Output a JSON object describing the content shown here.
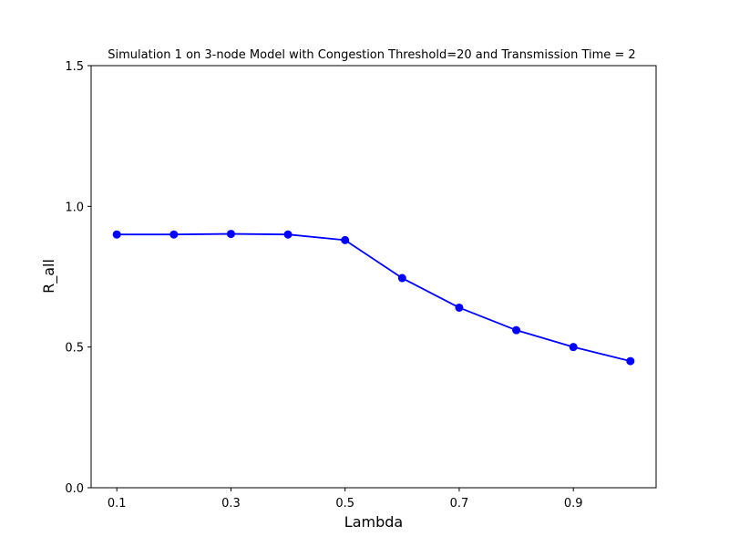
{
  "chart_data": {
    "type": "line",
    "title": "Simulation 1 on 3-node Model with Congestion Threshold=20 and Transmission Time = 2",
    "xlabel": "Lambda",
    "ylabel": "R_all",
    "x": [
      0.1,
      0.2,
      0.3,
      0.4,
      0.5,
      0.6,
      0.7,
      0.8,
      0.9,
      1.0
    ],
    "series": [
      {
        "values": [
          0.9,
          0.9,
          0.902,
          0.9,
          0.88,
          0.745,
          0.64,
          0.56,
          0.5,
          0.45
        ],
        "color": "#0000ff",
        "marker": "circle"
      }
    ],
    "xticks": [
      "0.1",
      "0.3",
      "0.5",
      "0.7",
      "0.9"
    ],
    "yticks": [
      "0.0",
      "0.5",
      "1.0",
      "1.5"
    ],
    "xlim": [
      0.055,
      1.045
    ],
    "ylim": [
      0.0,
      1.5
    ],
    "grid": false,
    "legend": false
  }
}
